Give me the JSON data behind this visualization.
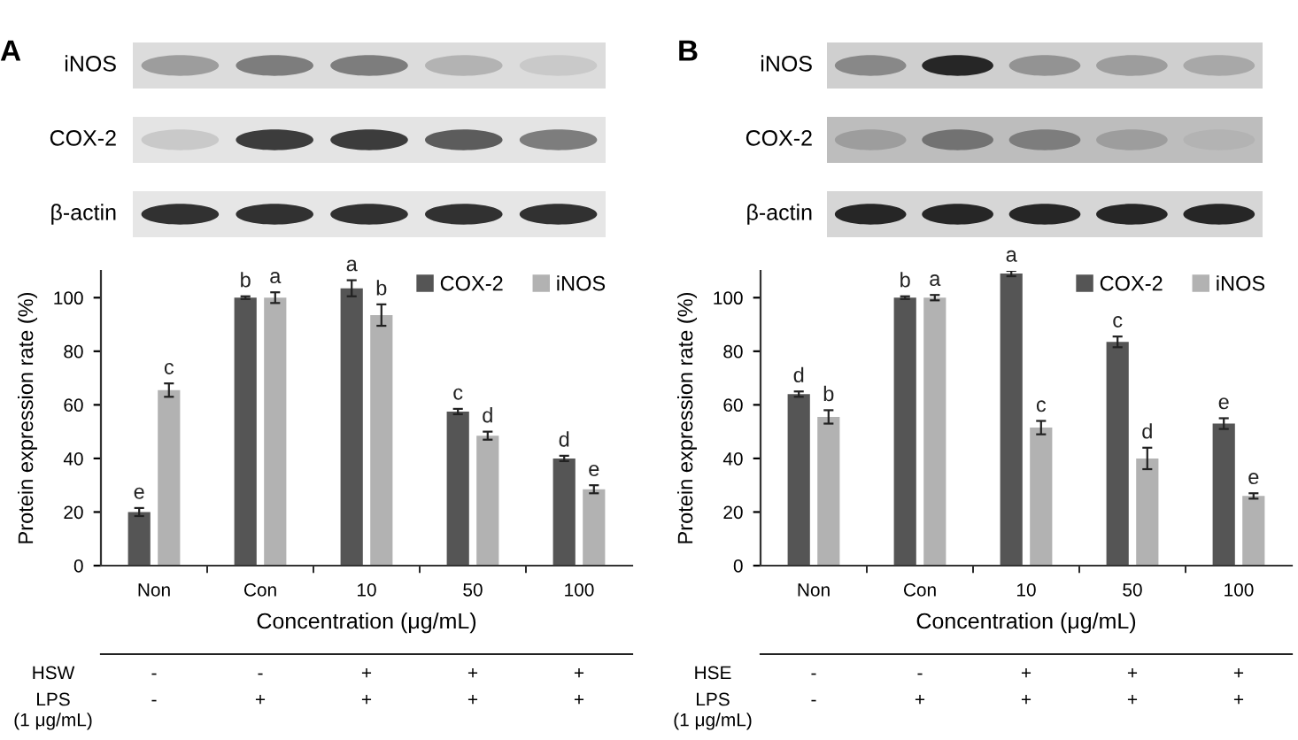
{
  "chart_data": [
    {
      "type": "bar",
      "title": "A",
      "categories": [
        "Non",
        "Con",
        "10",
        "50",
        "100"
      ],
      "series": [
        {
          "name": "COX-2",
          "color": "#555555",
          "values": [
            20,
            100,
            103.5,
            57.5,
            40
          ],
          "errors": [
            1.5,
            0.5,
            3,
            1,
            1
          ],
          "value_labels": [
            "e",
            "b",
            "a",
            "c",
            "d"
          ]
        },
        {
          "name": "iNOS",
          "color": "#b2b2b2",
          "values": [
            65.5,
            100,
            93.5,
            48.5,
            28.5
          ],
          "errors": [
            2.5,
            2,
            4,
            1.5,
            1.5
          ],
          "value_labels": [
            "c",
            "a",
            "b",
            "d",
            "e"
          ]
        }
      ],
      "xlabel": "Concentration (μg/mL)",
      "ylabel": "Protein expression rate (%)",
      "ylim": [
        0,
        110
      ],
      "yticks": [
        0,
        20,
        40,
        60,
        80,
        100
      ],
      "legend": "top right",
      "annotations": [
        "iNOS",
        "COX-2",
        "β-actin",
        "HSW",
        "-",
        "-",
        "+",
        "+",
        "+",
        "LPS\n(1 μg/mL)",
        "-",
        "+",
        "+",
        "+",
        "+"
      ]
    },
    {
      "type": "bar",
      "title": "B",
      "categories": [
        "Non",
        "Con",
        "10",
        "50",
        "100"
      ],
      "series": [
        {
          "name": "COX-2",
          "color": "#555555",
          "values": [
            64,
            100,
            109,
            83.5,
            53
          ],
          "errors": [
            1,
            0.5,
            1,
            2,
            2
          ],
          "value_labels": [
            "d",
            "b",
            "a",
            "c",
            "e"
          ]
        },
        {
          "name": "iNOS",
          "color": "#b2b2b2",
          "values": [
            55.5,
            100,
            51.5,
            40,
            26
          ],
          "errors": [
            2.5,
            1,
            2.5,
            4,
            1
          ],
          "value_labels": [
            "b",
            "a",
            "c",
            "d",
            "e"
          ]
        }
      ],
      "xlabel": "Concentration (μg/mL)",
      "ylabel": "Protein expression rate (%)",
      "ylim": [
        0,
        110
      ],
      "yticks": [
        0,
        20,
        40,
        60,
        80,
        100
      ],
      "legend": "top right",
      "annotations": [
        "iNOS",
        "COX-2",
        "β-actin",
        "HSE",
        "-",
        "-",
        "+",
        "+",
        "+",
        "LPS\n(1 μg/mL)",
        "-",
        "+",
        "+",
        "+",
        "+"
      ]
    }
  ]
}
